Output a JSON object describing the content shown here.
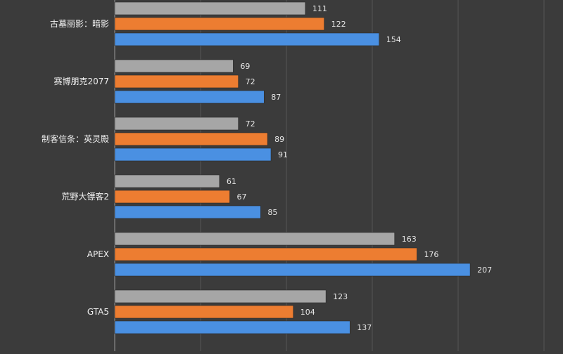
{
  "chart_data": {
    "type": "bar",
    "orientation": "horizontal",
    "categories": [
      "古墓丽影：暗影",
      "赛博朋克2077",
      "制客信条：英灵殿",
      "荒野大镖客2",
      "APEX",
      "GTA5"
    ],
    "series": [
      {
        "values": [
          111,
          69,
          72,
          61,
          163,
          123
        ],
        "color": "#a6a6a6"
      },
      {
        "values": [
          122,
          72,
          89,
          67,
          176,
          104
        ],
        "color": "#ed7d31"
      },
      {
        "values": [
          154,
          87,
          91,
          85,
          207,
          137
        ],
        "color": "#4a90e2"
      }
    ],
    "xlim": [
      0,
      250
    ],
    "grid": true,
    "title": "",
    "xlabel": "",
    "ylabel": ""
  }
}
